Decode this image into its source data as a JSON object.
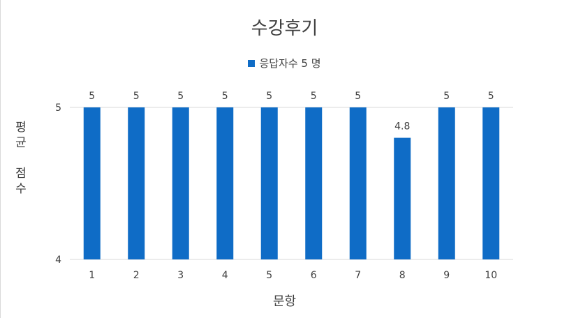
{
  "chart_data": {
    "type": "bar",
    "title": "수강후기",
    "legend": {
      "label": "응답자수 5 명",
      "placement": "top"
    },
    "series": [
      {
        "name": "응답자수 5 명",
        "color": "#0f6cc6",
        "values": [
          5,
          5,
          5,
          5,
          5,
          5,
          5,
          4.8,
          5,
          5
        ]
      }
    ],
    "categories": [
      "1",
      "2",
      "3",
      "4",
      "5",
      "6",
      "7",
      "8",
      "9",
      "10"
    ],
    "data_labels": [
      "5",
      "5",
      "5",
      "5",
      "5",
      "5",
      "5",
      "4.8",
      "5",
      "5"
    ],
    "xlabel": "문항",
    "ylabel": "평\n균\n\n점\n수",
    "ylim": [
      4,
      5
    ],
    "y_ticks": [
      "4",
      "5"
    ],
    "grid": true
  }
}
